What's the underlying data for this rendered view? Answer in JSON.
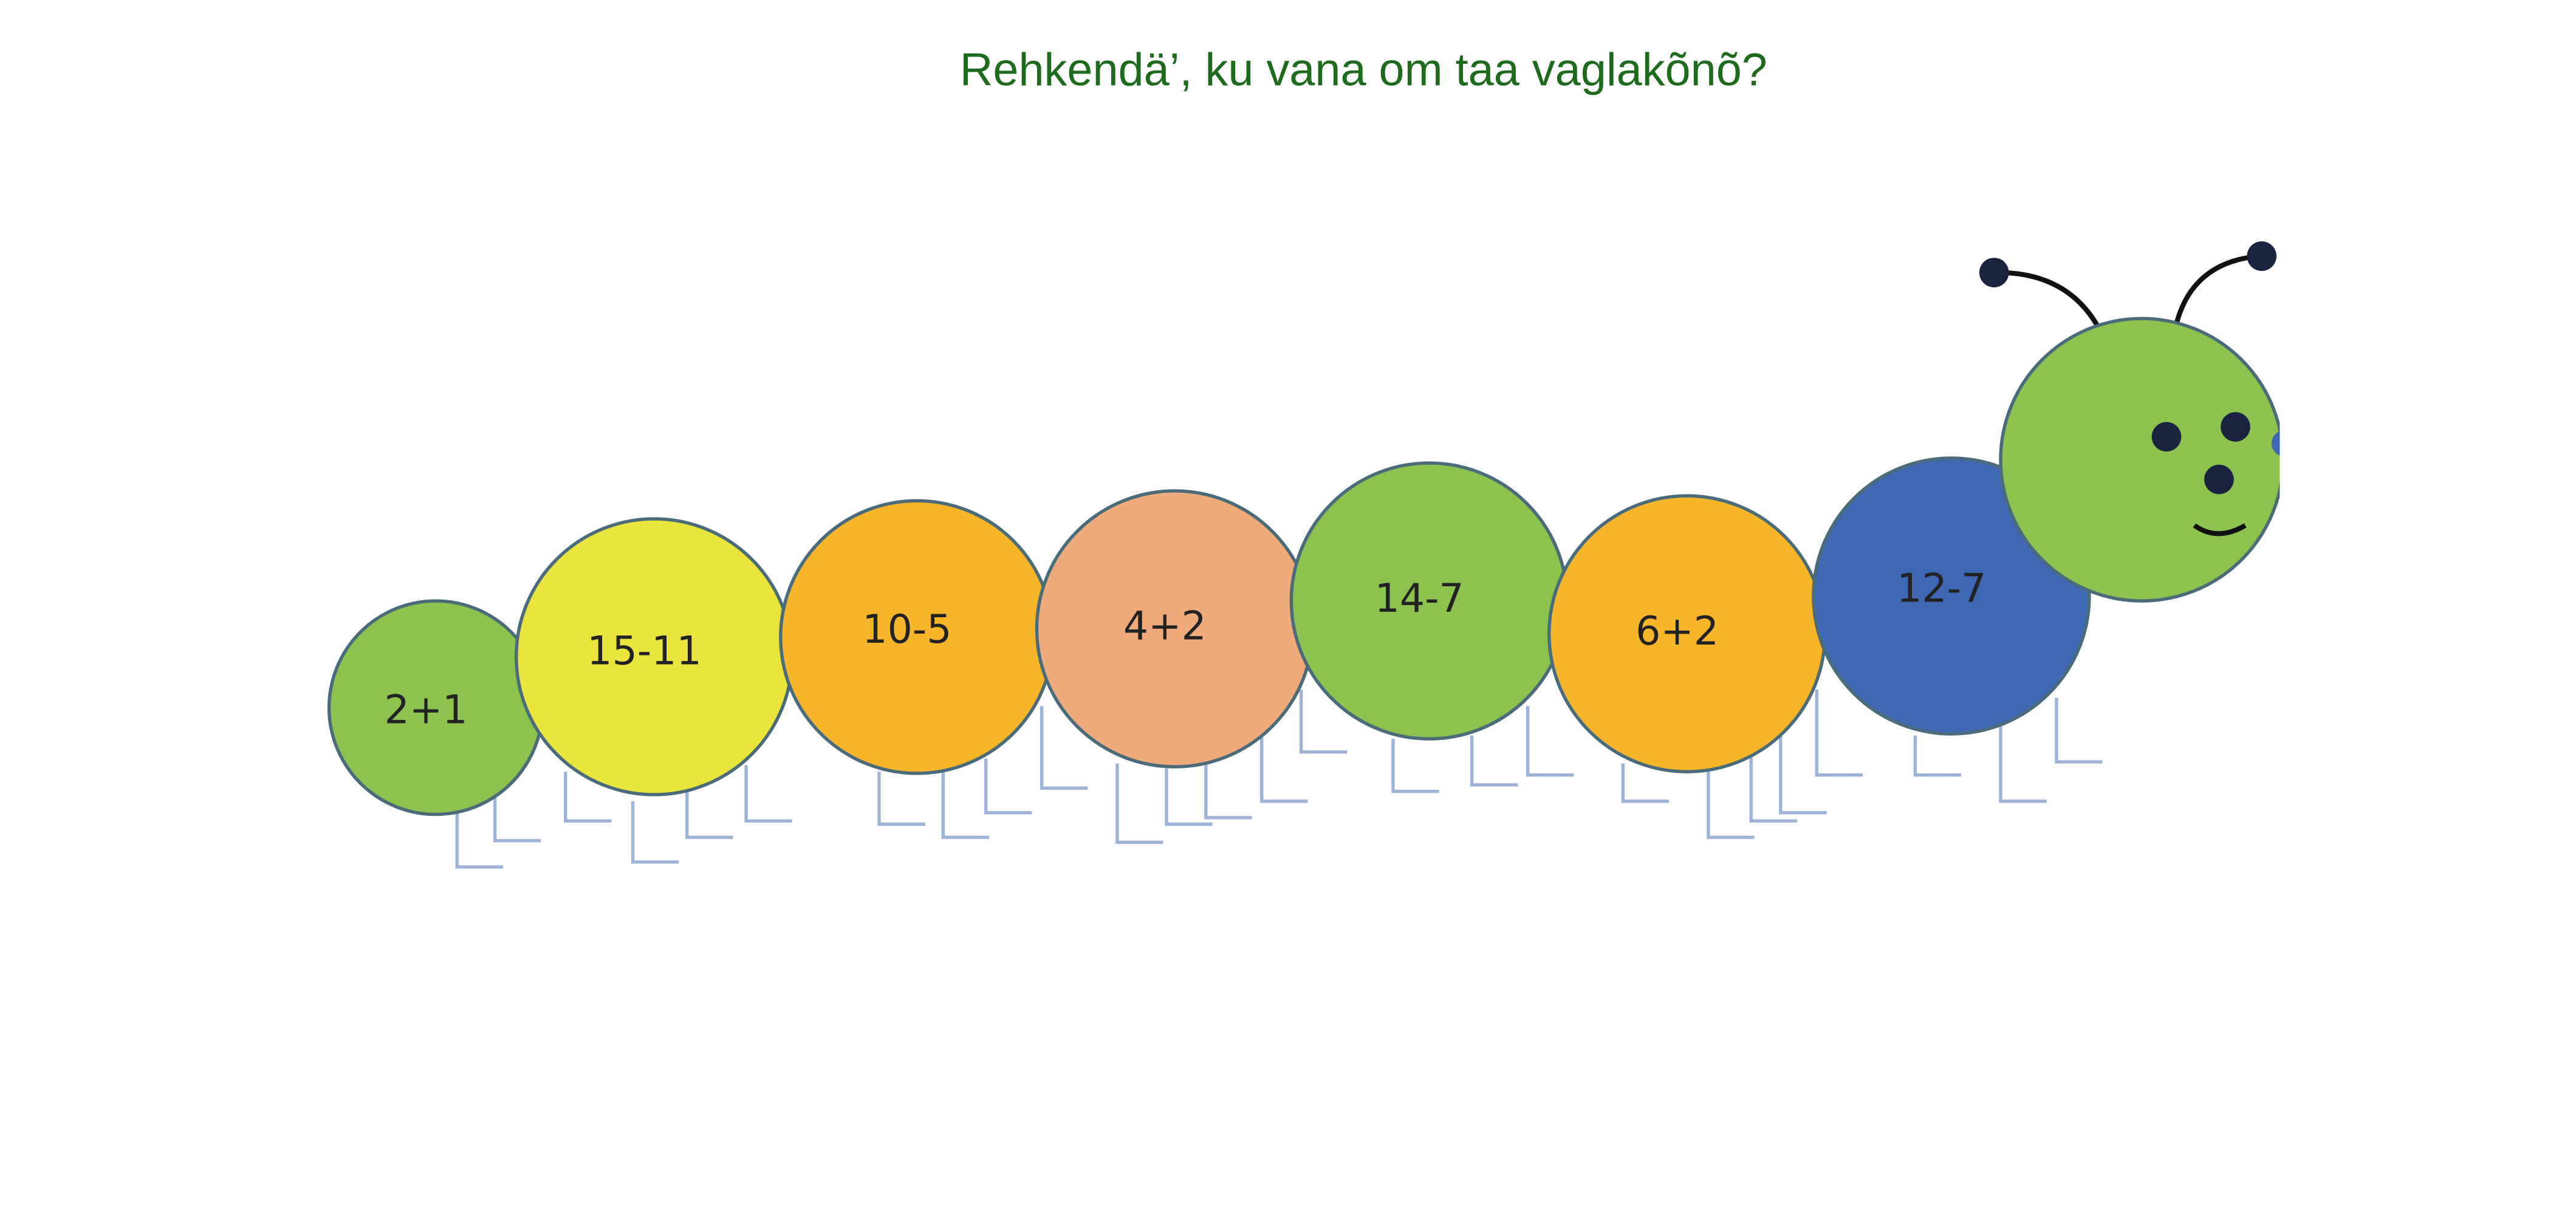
{
  "title": "Rehkendä’, ku vana om taa vaglakõnõ?",
  "segments": [
    {
      "label": "2+1"
    },
    {
      "label": "15-11"
    },
    {
      "label": "10-5"
    },
    {
      "label": "4+2"
    },
    {
      "label": "14-7"
    },
    {
      "label": "6+2"
    },
    {
      "label": "12-7"
    }
  ]
}
